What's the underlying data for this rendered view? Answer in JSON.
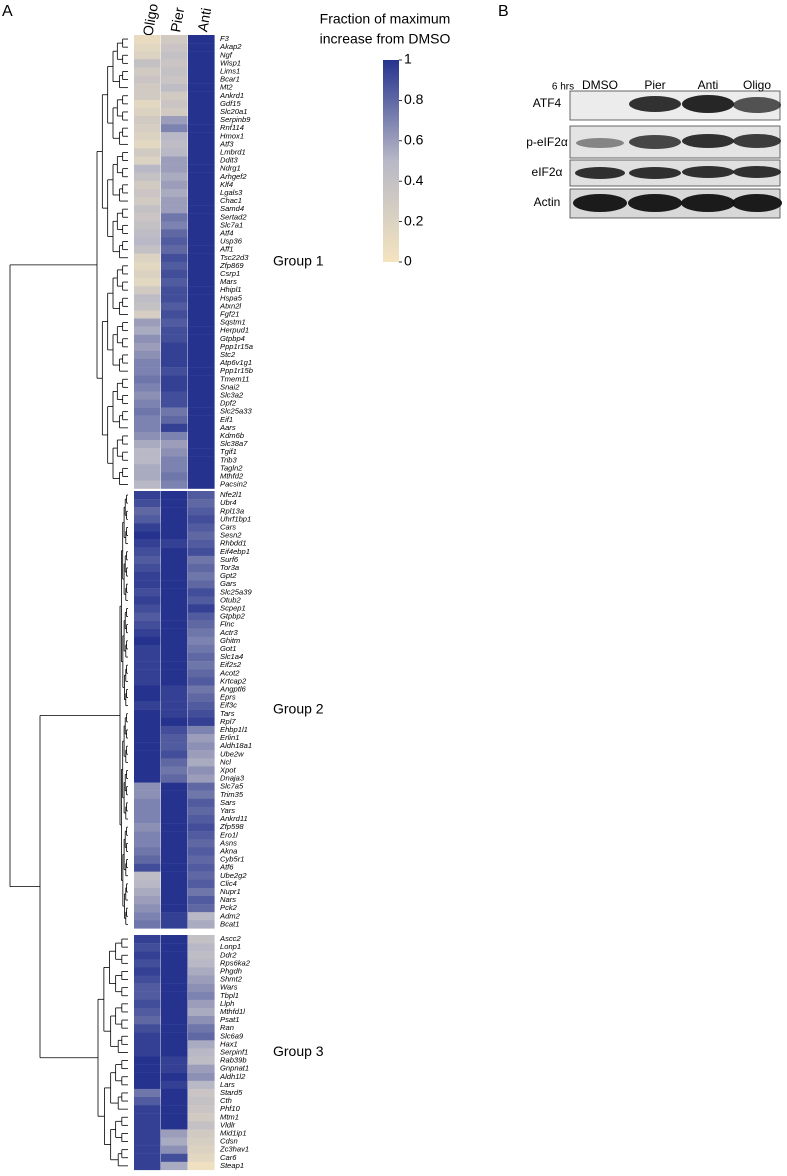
{
  "chart_data": {
    "type": "heatmap",
    "panel_label": "A",
    "columns": [
      "Oligo",
      "Pier",
      "Anti"
    ],
    "vlim": [
      0,
      1
    ],
    "colormap": [
      "#f4e4bf",
      "#b8b8c6",
      "#25338e"
    ],
    "colorbar": {
      "title": [
        "Fraction of maximum",
        "increase from DMSO"
      ],
      "ticks": [
        0,
        0.2,
        0.4,
        0.6,
        0.8,
        1
      ]
    },
    "label_highlight": {
      "color": "#e3262e",
      "genes": [
        "Gdf15",
        "Atf3",
        "Ddit3",
        "Atf4",
        "Ppp1r15a"
      ]
    },
    "groups": [
      {
        "name": "Group 1",
        "genes": [
          "F3",
          "Akap2",
          "Ngf",
          "Wisp1",
          "Lims1",
          "Bcar1",
          "Mt2",
          "Ankrd1",
          "Gdf15",
          "Slc20a1",
          "Serpinb9",
          "Rnf114",
          "Hmox1",
          "Atf3",
          "Lmbrd1",
          "Ddit3",
          "Ndrg1",
          "Arhgef2",
          "Klf4",
          "Lgals3",
          "Chac1",
          "Samd4",
          "Sertad2",
          "Slc7a1",
          "Atf4",
          "Usp36",
          "Aff1",
          "Tsc22d3",
          "Zfp869",
          "Csrp1",
          "Mars",
          "Hhipl1",
          "Hspa5",
          "Atxn2l",
          "Fgf21",
          "Sqstm1",
          "Herpud1",
          "Gtpbp4",
          "Ppp1r15a",
          "Stc2",
          "Atp6v1g1",
          "Ppp1r15b",
          "Tmem11",
          "Snai2",
          "Slc3a2",
          "Dpf2",
          "Slc25a33",
          "Eif1",
          "Aars",
          "Kdm6b",
          "Slc38a7",
          "Tgif1",
          "Trib3",
          "Tagln2",
          "Mthfd2",
          "Pacsin2"
        ],
        "values": [
          [
            0.1,
            0.3,
            1
          ],
          [
            0.15,
            0.35,
            1
          ],
          [
            0.2,
            0.4,
            1
          ],
          [
            0.4,
            0.35,
            1
          ],
          [
            0.3,
            0.4,
            1
          ],
          [
            0.35,
            0.35,
            1
          ],
          [
            0.3,
            0.45,
            1
          ],
          [
            0.3,
            0.3,
            1
          ],
          [
            0.15,
            0.35,
            1
          ],
          [
            0.2,
            0.3,
            1
          ],
          [
            0.3,
            0.6,
            1
          ],
          [
            0.25,
            0.7,
            1
          ],
          [
            0.2,
            0.5,
            1
          ],
          [
            0.15,
            0.45,
            1
          ],
          [
            0.3,
            0.5,
            1
          ],
          [
            0.2,
            0.6,
            1
          ],
          [
            0.5,
            0.6,
            1
          ],
          [
            0.4,
            0.55,
            1
          ],
          [
            0.3,
            0.6,
            1
          ],
          [
            0.35,
            0.55,
            1
          ],
          [
            0.3,
            0.6,
            1
          ],
          [
            0.4,
            0.6,
            1
          ],
          [
            0.35,
            0.75,
            1
          ],
          [
            0.4,
            0.7,
            1
          ],
          [
            0.45,
            0.8,
            1
          ],
          [
            0.5,
            0.85,
            1
          ],
          [
            0.4,
            0.8,
            1
          ],
          [
            0.2,
            0.9,
            1
          ],
          [
            0.15,
            0.85,
            1
          ],
          [
            0.2,
            0.9,
            1
          ],
          [
            0.15,
            0.85,
            1
          ],
          [
            0.3,
            0.9,
            1
          ],
          [
            0.45,
            0.9,
            1
          ],
          [
            0.4,
            0.85,
            1
          ],
          [
            0.25,
            0.9,
            1
          ],
          [
            0.6,
            0.85,
            1
          ],
          [
            0.55,
            0.9,
            1
          ],
          [
            0.65,
            0.9,
            1
          ],
          [
            0.6,
            0.95,
            1
          ],
          [
            0.65,
            0.95,
            1
          ],
          [
            0.7,
            0.95,
            1
          ],
          [
            0.7,
            0.9,
            1
          ],
          [
            0.75,
            0.95,
            1
          ],
          [
            0.7,
            0.95,
            1
          ],
          [
            0.65,
            0.9,
            1
          ],
          [
            0.7,
            0.9,
            1
          ],
          [
            0.75,
            0.75,
            1
          ],
          [
            0.7,
            0.8,
            1
          ],
          [
            0.7,
            0.95,
            1
          ],
          [
            0.65,
            0.7,
            1
          ],
          [
            0.55,
            0.6,
            1
          ],
          [
            0.5,
            0.65,
            1
          ],
          [
            0.5,
            0.7,
            1
          ],
          [
            0.55,
            0.7,
            1
          ],
          [
            0.55,
            0.75,
            1
          ],
          [
            0.5,
            0.7,
            1
          ]
        ]
      },
      {
        "name": "Group 2",
        "genes": [
          "Nfe2l1",
          "Ubr4",
          "Rpl13a",
          "Uhrf1bp1",
          "Cars",
          "Sesn2",
          "Rhbdd1",
          "Eif4ebp1",
          "Surf6",
          "Tor3a",
          "Gpt2",
          "Gars",
          "Slc25a39",
          "Otub2",
          "Scpep1",
          "Gtpbp2",
          "Flnc",
          "Actr3",
          "Ghitm",
          "Got1",
          "Slc1a4",
          "Eif2s2",
          "Acot2",
          "Krtcap2",
          "Angptl6",
          "Eprs",
          "Eif3c",
          "Tars",
          "Rpl7",
          "Ehbp1l1",
          "Erlin1",
          "Aldh18a1",
          "Ube2w",
          "Ncl",
          "Xpot",
          "Dnaja3",
          "Slc7a5",
          "Trim35",
          "Sars",
          "Yars",
          "Ankrd11",
          "Zfp598",
          "Ero1l",
          "Asns",
          "Akna",
          "Cyb5r1",
          "Atf6",
          "Ube2g2",
          "Clic4",
          "Nupr1",
          "Nars",
          "Pck2",
          "Adm2",
          "Bcat1"
        ],
        "values": [
          [
            0.95,
            1,
            0.85
          ],
          [
            0.9,
            1,
            0.8
          ],
          [
            0.8,
            1,
            0.85
          ],
          [
            0.85,
            1,
            0.9
          ],
          [
            0.95,
            1,
            0.85
          ],
          [
            1,
            1,
            0.8
          ],
          [
            0.95,
            0.95,
            0.85
          ],
          [
            0.9,
            1,
            0.9
          ],
          [
            0.85,
            1,
            0.75
          ],
          [
            0.9,
            1,
            0.8
          ],
          [
            0.95,
            1,
            0.75
          ],
          [
            0.95,
            1,
            0.8
          ],
          [
            0.9,
            1,
            0.9
          ],
          [
            0.95,
            1,
            0.85
          ],
          [
            0.9,
            1,
            0.95
          ],
          [
            0.85,
            1,
            0.85
          ],
          [
            0.9,
            1,
            0.8
          ],
          [
            0.95,
            1,
            0.75
          ],
          [
            1,
            1,
            0.7
          ],
          [
            0.95,
            1,
            0.75
          ],
          [
            0.95,
            1,
            0.8
          ],
          [
            0.95,
            1,
            0.75
          ],
          [
            0.95,
            1,
            0.8
          ],
          [
            0.95,
            1,
            0.85
          ],
          [
            1,
            0.95,
            0.75
          ],
          [
            1,
            0.95,
            0.8
          ],
          [
            0.95,
            0.95,
            0.85
          ],
          [
            1,
            0.95,
            0.9
          ],
          [
            1,
            1,
            0.95
          ],
          [
            1,
            0.9,
            0.7
          ],
          [
            1,
            0.85,
            0.6
          ],
          [
            1,
            0.85,
            0.65
          ],
          [
            1,
            0.9,
            0.6
          ],
          [
            1,
            0.8,
            0.55
          ],
          [
            1,
            0.75,
            0.65
          ],
          [
            1,
            0.8,
            0.6
          ],
          [
            0.65,
            1,
            0.8
          ],
          [
            0.65,
            1,
            0.75
          ],
          [
            0.7,
            1,
            0.85
          ],
          [
            0.7,
            1,
            0.8
          ],
          [
            0.7,
            1,
            0.85
          ],
          [
            0.65,
            1,
            0.9
          ],
          [
            0.7,
            1,
            0.85
          ],
          [
            0.7,
            1,
            0.8
          ],
          [
            0.75,
            1,
            0.85
          ],
          [
            0.8,
            1,
            0.8
          ],
          [
            0.9,
            1,
            0.85
          ],
          [
            0.45,
            1,
            0.8
          ],
          [
            0.5,
            1,
            0.85
          ],
          [
            0.55,
            1,
            0.75
          ],
          [
            0.6,
            1,
            0.85
          ],
          [
            0.65,
            1,
            0.8
          ],
          [
            0.7,
            0.95,
            0.5
          ],
          [
            0.75,
            0.95,
            0.55
          ]
        ]
      },
      {
        "name": "Group 3",
        "genes": [
          "Ascc2",
          "Lonp1",
          "Ddr2",
          "Rps6ka2",
          "Phgdh",
          "Shmt2",
          "Wars",
          "Tbpl1",
          "Llph",
          "Mthfd1l",
          "Psat1",
          "Ran",
          "Slc6a9",
          "Hax1",
          "Serpinf1",
          "Rab39b",
          "Gnpnat1",
          "Aldh1l2",
          "Lars",
          "Stard5",
          "Cth",
          "Phf10",
          "Mtm1",
          "Vldlr",
          "Mid1ip1",
          "Cdsn",
          "Zc3hav1",
          "Car6",
          "Steap1"
        ],
        "values": [
          [
            0.95,
            1,
            0.4
          ],
          [
            0.9,
            1,
            0.5
          ],
          [
            0.95,
            1,
            0.45
          ],
          [
            0.9,
            1,
            0.5
          ],
          [
            0.95,
            1,
            0.55
          ],
          [
            0.9,
            1,
            0.6
          ],
          [
            0.85,
            1,
            0.65
          ],
          [
            0.85,
            1,
            0.7
          ],
          [
            0.9,
            1,
            0.6
          ],
          [
            0.85,
            1,
            0.55
          ],
          [
            0.8,
            1,
            0.65
          ],
          [
            0.9,
            1,
            0.75
          ],
          [
            0.95,
            1,
            0.8
          ],
          [
            0.95,
            1,
            0.55
          ],
          [
            0.95,
            1,
            0.5
          ],
          [
            1,
            0.95,
            0.45
          ],
          [
            1,
            0.95,
            0.6
          ],
          [
            1,
            1,
            0.65
          ],
          [
            1,
            0.95,
            0.5
          ],
          [
            0.75,
            1,
            0.35
          ],
          [
            0.85,
            1,
            0.4
          ],
          [
            0.95,
            1,
            0.35
          ],
          [
            0.95,
            1,
            0.3
          ],
          [
            0.95,
            1,
            0.4
          ],
          [
            0.95,
            0.6,
            0.3
          ],
          [
            0.95,
            0.55,
            0.25
          ],
          [
            0.95,
            0.65,
            0.2
          ],
          [
            0.95,
            0.9,
            0.15
          ],
          [
            0.95,
            0.55,
            0.05
          ]
        ]
      }
    ]
  },
  "blot": {
    "panel_label": "B",
    "time": "6 hrs",
    "lanes": [
      "DMSO",
      "Pier",
      "Anti",
      "Oligo"
    ],
    "rows": [
      "ATF4",
      "p-eIF2α",
      "eIF2α",
      "Actin"
    ]
  }
}
